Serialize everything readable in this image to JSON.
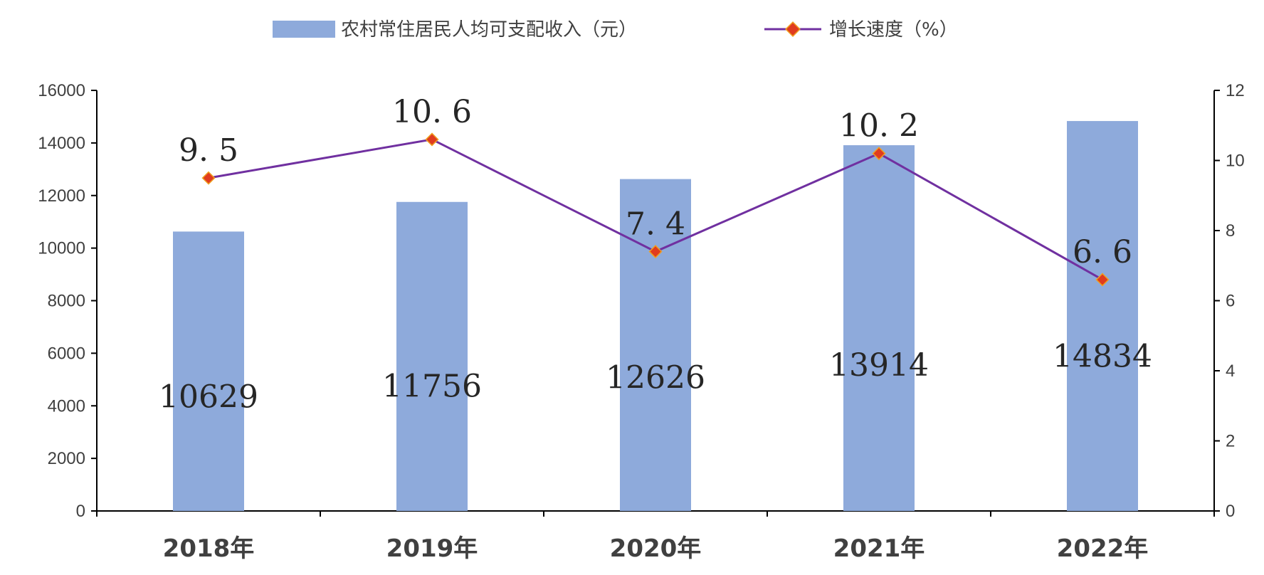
{
  "chart_data": {
    "type": "bar",
    "categories": [
      "2018年",
      "2019年",
      "2020年",
      "2021年",
      "2022年"
    ],
    "series": [
      {
        "name": "农村常住居民人均可支配收入（元）",
        "type": "bar",
        "axis": "left",
        "values": [
          10629,
          11756,
          12626,
          13914,
          14834
        ],
        "color": "#8eaadb"
      },
      {
        "name": "增长速度（%）",
        "type": "line",
        "axis": "right",
        "values": [
          9.5,
          10.6,
          7.4,
          10.2,
          6.6
        ],
        "color": "#7030a0",
        "marker_color": "#e03c1f"
      }
    ],
    "ylim_left": [
      0,
      16000
    ],
    "yticks_left": [
      "0",
      "2000",
      "4000",
      "6000",
      "8000",
      "10000",
      "12000",
      "14000",
      "16000"
    ],
    "ylim_right": [
      0,
      12
    ],
    "yticks_right": [
      "0",
      "2",
      "4",
      "6",
      "8",
      "10",
      "12"
    ],
    "bar_labels": [
      "10629",
      "11756",
      "12626",
      "13914",
      "14834"
    ],
    "line_labels": [
      "9. 5",
      "10. 6",
      "7. 4",
      "10. 2",
      "6. 6"
    ],
    "grid": false,
    "legend_position": "top-center"
  }
}
